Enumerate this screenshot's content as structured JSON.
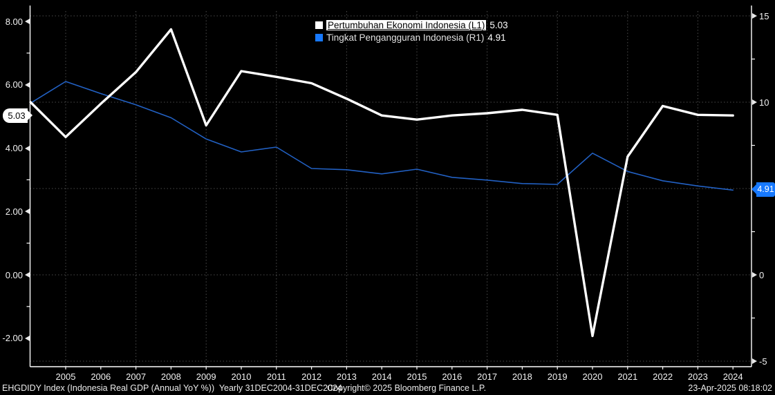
{
  "chart_data": {
    "type": "line",
    "x": [
      2004,
      2005,
      2006,
      2007,
      2008,
      2009,
      2010,
      2011,
      2012,
      2013,
      2014,
      2015,
      2016,
      2017,
      2018,
      2019,
      2020,
      2021,
      2022,
      2023,
      2024
    ],
    "series": [
      {
        "name": "Pertumbuhan Ekonomi Indonesia (L1)",
        "axis": "left",
        "color": "#ffffff",
        "last_value": "5.03",
        "values": [
          5.45,
          4.35,
          5.4,
          6.4,
          7.75,
          4.72,
          6.43,
          6.25,
          6.05,
          5.56,
          5.03,
          4.9,
          5.03,
          5.1,
          5.21,
          5.05,
          -1.93,
          3.73,
          5.33,
          5.05,
          5.03
        ]
      },
      {
        "name": "Tingkat Pengangguran Indonesia (R1)",
        "axis": "right",
        "color": "#2261c4",
        "last_value": "4.91",
        "values": [
          9.95,
          11.2,
          10.5,
          9.85,
          9.1,
          7.87,
          7.12,
          7.4,
          6.16,
          6.09,
          5.85,
          6.12,
          5.65,
          5.49,
          5.29,
          5.24,
          7.05,
          5.99,
          5.45,
          5.15,
          4.91
        ]
      }
    ],
    "left_axis": {
      "tick_labels": [
        "8.00",
        "6.00",
        "4.00",
        "2.00",
        "0.00",
        "-2.00"
      ],
      "tick_values": [
        8,
        6,
        4,
        2,
        0,
        -2
      ],
      "minor_values": [
        7,
        5,
        3,
        1,
        -1
      ],
      "range_hint": [
        -2.9,
        8.5
      ]
    },
    "right_axis": {
      "tick_labels": [
        "15",
        "10",
        "0",
        "-5"
      ],
      "tick_values": [
        15,
        10,
        0,
        -5
      ],
      "minor_values": [
        12.5,
        7.5,
        2.5,
        -2.5
      ],
      "grid_values": [
        15,
        10,
        5,
        0,
        -5
      ],
      "range_hint": [
        -5.3,
        15.6
      ]
    },
    "x_axis": {
      "labels": [
        "2005",
        "2006",
        "2007",
        "2008",
        "2009",
        "2010",
        "2011",
        "2012",
        "2013",
        "2014",
        "2015",
        "2016",
        "2017",
        "2018",
        "2019",
        "2020",
        "2021",
        "2022",
        "2023",
        "2024"
      ],
      "grid_years": [
        2005,
        2007,
        2009,
        2011,
        2013,
        2015,
        2017,
        2019,
        2021,
        2023
      ]
    },
    "grid": true,
    "legend_position": "top-center"
  },
  "legend": {
    "items": [
      {
        "label": "Pertumbuhan Ekonomi Indonesia (L1)",
        "value": "5.03",
        "swatch": "#ffffff",
        "highlighted": true
      },
      {
        "label": "Tingkat Pengangguran Indonesia (R1)",
        "value": "4.91",
        "swatch": "#1779ff",
        "highlighted": false
      }
    ]
  },
  "axis_bubbles": {
    "left": "5.03",
    "right": "4.91"
  },
  "colors": {
    "gdp_line": "#ffffff",
    "unemployment_line": "#2261c4",
    "bubble_right": "#1779ff",
    "grid": "#4d4d4d",
    "axis": "#ffffff"
  },
  "footer": {
    "left": "EHGDIDY Index (Indonesia Real GDP (Annual YoY %))  Yearly 31DEC2004-31DEC2024",
    "center": "Copyright© 2025 Bloomberg Finance L.P.",
    "right": "23-Apr-2025 08:18:02"
  }
}
